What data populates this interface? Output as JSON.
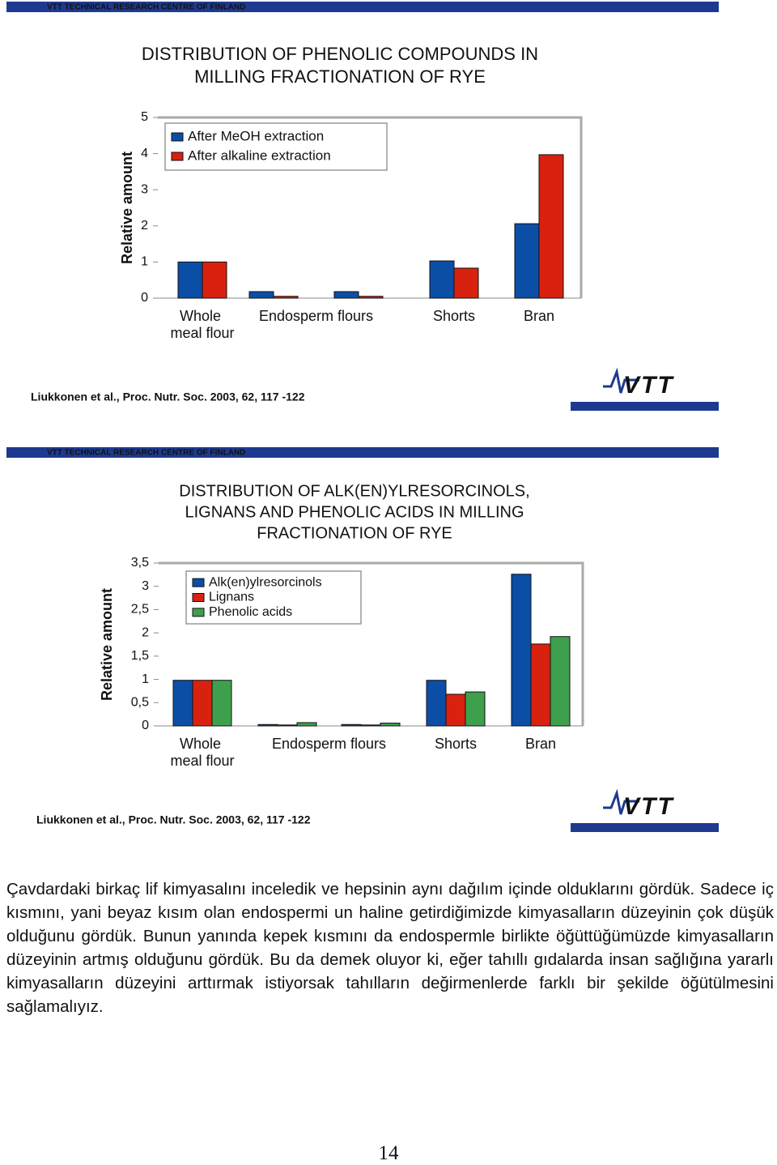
{
  "slides": [
    {
      "band": "VTT TECHNICAL RESEARCH CENTRE OF FINLAND",
      "citation": "Liukkonen et al., Proc. Nutr. Soc. 2003, 62, 117 -122",
      "logo": "VTT"
    },
    {
      "band": "VTT TECHNICAL RESEARCH CENTRE OF FINLAND",
      "citation": "Liukkonen et al., Proc. Nutr. Soc. 2003, 62, 117 -122",
      "logo": "VTT"
    }
  ],
  "chart_data": [
    {
      "type": "bar",
      "title": [
        "DISTRIBUTION OF PHENOLIC COMPOUNDS IN",
        "MILLING FRACTIONATION OF RYE"
      ],
      "y_label": "Relative amount",
      "categories": [
        "Whole meal flour",
        "Endosperm flours",
        null,
        "Shorts",
        "Bran"
      ],
      "series": [
        {
          "name": "After  MeOH extraction",
          "color": "#0b4ea6",
          "values": [
            1.0,
            0.18,
            0.18,
            1.03,
            2.06
          ]
        },
        {
          "name": "After alkaline extraction",
          "color": "#d8220f",
          "values": [
            1.0,
            0.05,
            0.05,
            0.83,
            3.97
          ]
        }
      ],
      "ylim": [
        0,
        5
      ],
      "yticks": [
        0,
        1,
        2,
        3,
        4,
        5
      ],
      "legend": "upper-left"
    },
    {
      "type": "bar",
      "title": [
        "DISTRIBUTION OF ALK(EN)YLRESORCINOLS,",
        "LIGNANS AND PHENOLIC ACIDS IN MILLING",
        "FRACTIONATION OF RYE"
      ],
      "y_label": "Relative amount",
      "categories": [
        "Whole meal flour",
        "Endosperm flours",
        null,
        "Shorts",
        "Bran"
      ],
      "series": [
        {
          "name": "Alk(en)ylresorcinols",
          "color": "#0b4ea6",
          "values": [
            0.98,
            0.03,
            0.03,
            0.98,
            3.26
          ]
        },
        {
          "name": "Lignans",
          "color": "#d8220f",
          "values": [
            0.98,
            0.02,
            0.02,
            0.68,
            1.76
          ]
        },
        {
          "name": "Phenolic  acids",
          "color": "#3ea04c",
          "values": [
            0.98,
            0.07,
            0.06,
            0.73,
            1.92
          ]
        }
      ],
      "ylim": [
        0,
        3.5
      ],
      "yticks": [
        0,
        {
          "value": 0.5,
          "label": "0,5"
        },
        1,
        {
          "value": 1.5,
          "label": "1,5"
        },
        2,
        {
          "value": 2.5,
          "label": "2,5"
        },
        3,
        {
          "value": 3.5,
          "label": "3,5"
        }
      ],
      "legend": "upper-left"
    }
  ],
  "paragraph": "Çavdardaki birkaç lif kimyasalını inceledik ve hepsinin aynı dağılım içinde olduklarını gördük. Sadece iç kısmını, yani beyaz kısım olan endospermi un haline getirdiğimizde kimyasalların düzeyinin çok düşük olduğunu gördük. Bunun yanında kepek kısmını da endospermle birlikte öğüttüğümüzde kimyasalların düzeyinin artmış olduğunu gördük. Bu da demek oluyor ki, eğer tahıllı gıdalarda insan sağlığına yararlı kimyasalların düzeyini arttırmak istiyorsak tahılların değirmenlerde farklı bir şekilde öğütülmesini sağlamalıyız.",
  "page_number": "14"
}
